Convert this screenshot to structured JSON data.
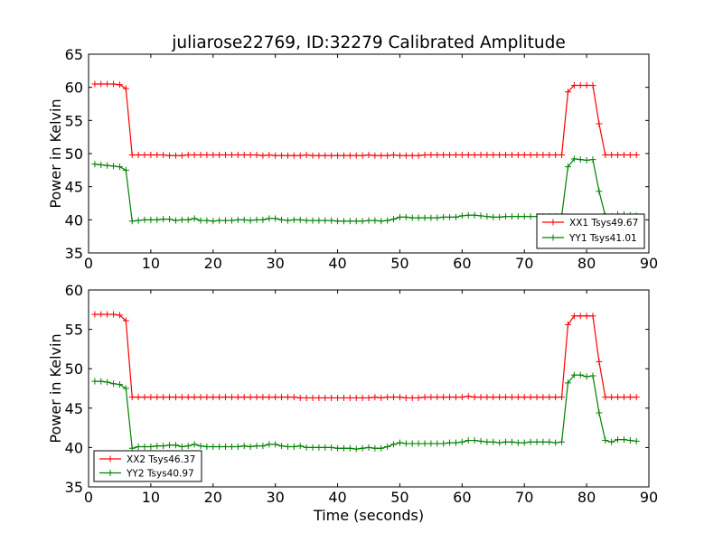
{
  "chart_data": [
    {
      "type": "line",
      "title": "juliarose22769, ID:32279 Calibrated Amplitude",
      "xlabel": "",
      "ylabel": "Power in Kelvin",
      "xlim": [
        0,
        90
      ],
      "ylim": [
        35,
        65
      ],
      "xticks": [
        "0",
        "10",
        "20",
        "30",
        "40",
        "50",
        "60",
        "70",
        "80",
        "90"
      ],
      "yticks": [
        "35",
        "40",
        "45",
        "50",
        "55",
        "60",
        "65"
      ],
      "grid": false,
      "legend_position": "lower-right",
      "x": [
        1,
        2,
        3,
        4,
        5,
        6,
        7,
        8,
        9,
        10,
        11,
        12,
        13,
        14,
        15,
        16,
        17,
        18,
        19,
        20,
        21,
        22,
        23,
        24,
        25,
        26,
        27,
        28,
        29,
        30,
        31,
        32,
        33,
        34,
        35,
        36,
        37,
        38,
        39,
        40,
        41,
        42,
        43,
        44,
        45,
        46,
        47,
        48,
        49,
        50,
        51,
        52,
        53,
        54,
        55,
        56,
        57,
        58,
        59,
        60,
        61,
        62,
        63,
        64,
        65,
        66,
        67,
        68,
        69,
        70,
        71,
        72,
        73,
        74,
        75,
        76,
        77,
        78,
        79,
        80,
        81,
        82,
        83,
        84,
        85,
        86,
        87,
        88
      ],
      "series": [
        {
          "name": "XX1 Tsys49.67",
          "color": "#ff0000",
          "values": [
            60.5,
            60.5,
            60.5,
            60.5,
            60.4,
            59.8,
            49.8,
            49.8,
            49.8,
            49.8,
            49.8,
            49.8,
            49.7,
            49.7,
            49.7,
            49.8,
            49.8,
            49.8,
            49.8,
            49.8,
            49.8,
            49.8,
            49.8,
            49.8,
            49.8,
            49.8,
            49.8,
            49.7,
            49.8,
            49.7,
            49.7,
            49.7,
            49.7,
            49.7,
            49.8,
            49.7,
            49.7,
            49.7,
            49.7,
            49.7,
            49.7,
            49.7,
            49.7,
            49.7,
            49.8,
            49.7,
            49.7,
            49.7,
            49.8,
            49.7,
            49.7,
            49.7,
            49.7,
            49.8,
            49.8,
            49.8,
            49.8,
            49.8,
            49.8,
            49.8,
            49.8,
            49.8,
            49.8,
            49.8,
            49.8,
            49.8,
            49.8,
            49.8,
            49.8,
            49.8,
            49.8,
            49.8,
            49.8,
            49.8,
            49.8,
            49.8,
            59.3,
            60.3,
            60.3,
            60.3,
            60.3,
            54.5,
            49.8,
            49.8,
            49.8,
            49.8,
            49.8,
            49.8
          ]
        },
        {
          "name": "YY1 Tsys41.01",
          "color": "#008000",
          "values": [
            48.4,
            48.3,
            48.2,
            48.1,
            48.0,
            47.5,
            39.8,
            39.9,
            40.0,
            40.0,
            40.0,
            40.1,
            40.1,
            39.9,
            40.0,
            40.0,
            40.2,
            39.9,
            39.9,
            39.8,
            39.9,
            39.9,
            39.9,
            40.0,
            40.0,
            39.9,
            40.0,
            40.0,
            40.2,
            40.2,
            40.0,
            39.9,
            40.0,
            40.0,
            39.9,
            39.9,
            39.9,
            39.9,
            39.9,
            39.8,
            39.8,
            39.8,
            39.8,
            39.8,
            39.9,
            39.9,
            39.8,
            39.9,
            40.1,
            40.4,
            40.4,
            40.3,
            40.3,
            40.3,
            40.3,
            40.3,
            40.4,
            40.4,
            40.4,
            40.6,
            40.7,
            40.7,
            40.6,
            40.5,
            40.4,
            40.4,
            40.5,
            40.5,
            40.5,
            40.5,
            40.5,
            40.5,
            40.5,
            40.5,
            40.5,
            40.6,
            48.0,
            49.2,
            49.1,
            49.0,
            49.1,
            44.3,
            40.6,
            40.5,
            40.8,
            40.8,
            40.7,
            40.6
          ]
        }
      ]
    },
    {
      "type": "line",
      "title": "",
      "xlabel": "Time (seconds)",
      "ylabel": "Power in Kelvin",
      "xlim": [
        0,
        90
      ],
      "ylim": [
        35,
        60
      ],
      "xticks": [
        "0",
        "10",
        "20",
        "30",
        "40",
        "50",
        "60",
        "70",
        "80",
        "90"
      ],
      "yticks": [
        "35",
        "40",
        "45",
        "50",
        "55",
        "60"
      ],
      "grid": false,
      "legend_position": "lower-left",
      "x": [
        1,
        2,
        3,
        4,
        5,
        6,
        7,
        8,
        9,
        10,
        11,
        12,
        13,
        14,
        15,
        16,
        17,
        18,
        19,
        20,
        21,
        22,
        23,
        24,
        25,
        26,
        27,
        28,
        29,
        30,
        31,
        32,
        33,
        34,
        35,
        36,
        37,
        38,
        39,
        40,
        41,
        42,
        43,
        44,
        45,
        46,
        47,
        48,
        49,
        50,
        51,
        52,
        53,
        54,
        55,
        56,
        57,
        58,
        59,
        60,
        61,
        62,
        63,
        64,
        65,
        66,
        67,
        68,
        69,
        70,
        71,
        72,
        73,
        74,
        75,
        76,
        77,
        78,
        79,
        80,
        81,
        82,
        83,
        84,
        85,
        86,
        87,
        88
      ],
      "series": [
        {
          "name": "XX2 Tsys46.37",
          "color": "#ff0000",
          "values": [
            56.9,
            56.9,
            56.9,
            56.9,
            56.8,
            56.1,
            46.4,
            46.4,
            46.4,
            46.4,
            46.4,
            46.4,
            46.4,
            46.4,
            46.4,
            46.4,
            46.4,
            46.4,
            46.4,
            46.4,
            46.4,
            46.4,
            46.4,
            46.4,
            46.4,
            46.4,
            46.4,
            46.4,
            46.4,
            46.4,
            46.4,
            46.4,
            46.4,
            46.3,
            46.3,
            46.3,
            46.3,
            46.3,
            46.3,
            46.3,
            46.3,
            46.3,
            46.3,
            46.3,
            46.3,
            46.4,
            46.3,
            46.4,
            46.4,
            46.4,
            46.3,
            46.3,
            46.3,
            46.4,
            46.4,
            46.4,
            46.4,
            46.4,
            46.4,
            46.4,
            46.5,
            46.4,
            46.4,
            46.4,
            46.4,
            46.4,
            46.4,
            46.4,
            46.4,
            46.4,
            46.4,
            46.4,
            46.4,
            46.4,
            46.4,
            46.4,
            55.6,
            56.7,
            56.7,
            56.7,
            56.7,
            50.9,
            46.4,
            46.4,
            46.4,
            46.4,
            46.4,
            46.4
          ]
        },
        {
          "name": "YY2 Tsys40.97",
          "color": "#008000",
          "values": [
            48.4,
            48.4,
            48.3,
            48.1,
            48.0,
            47.5,
            39.9,
            40.1,
            40.1,
            40.1,
            40.2,
            40.2,
            40.3,
            40.3,
            40.1,
            40.2,
            40.4,
            40.2,
            40.1,
            40.1,
            40.1,
            40.1,
            40.1,
            40.1,
            40.2,
            40.1,
            40.2,
            40.2,
            40.4,
            40.4,
            40.2,
            40.1,
            40.1,
            40.2,
            40.0,
            40.0,
            40.0,
            40.0,
            40.0,
            39.9,
            39.9,
            39.9,
            39.8,
            39.9,
            40.0,
            39.9,
            39.9,
            40.1,
            40.4,
            40.6,
            40.5,
            40.5,
            40.5,
            40.5,
            40.5,
            40.5,
            40.5,
            40.6,
            40.6,
            40.7,
            40.9,
            40.9,
            40.8,
            40.7,
            40.7,
            40.6,
            40.7,
            40.7,
            40.6,
            40.6,
            40.7,
            40.7,
            40.7,
            40.7,
            40.6,
            40.7,
            48.2,
            49.2,
            49.2,
            49.0,
            49.1,
            44.4,
            40.9,
            40.7,
            41.0,
            41.0,
            40.9,
            40.8
          ]
        }
      ]
    }
  ]
}
